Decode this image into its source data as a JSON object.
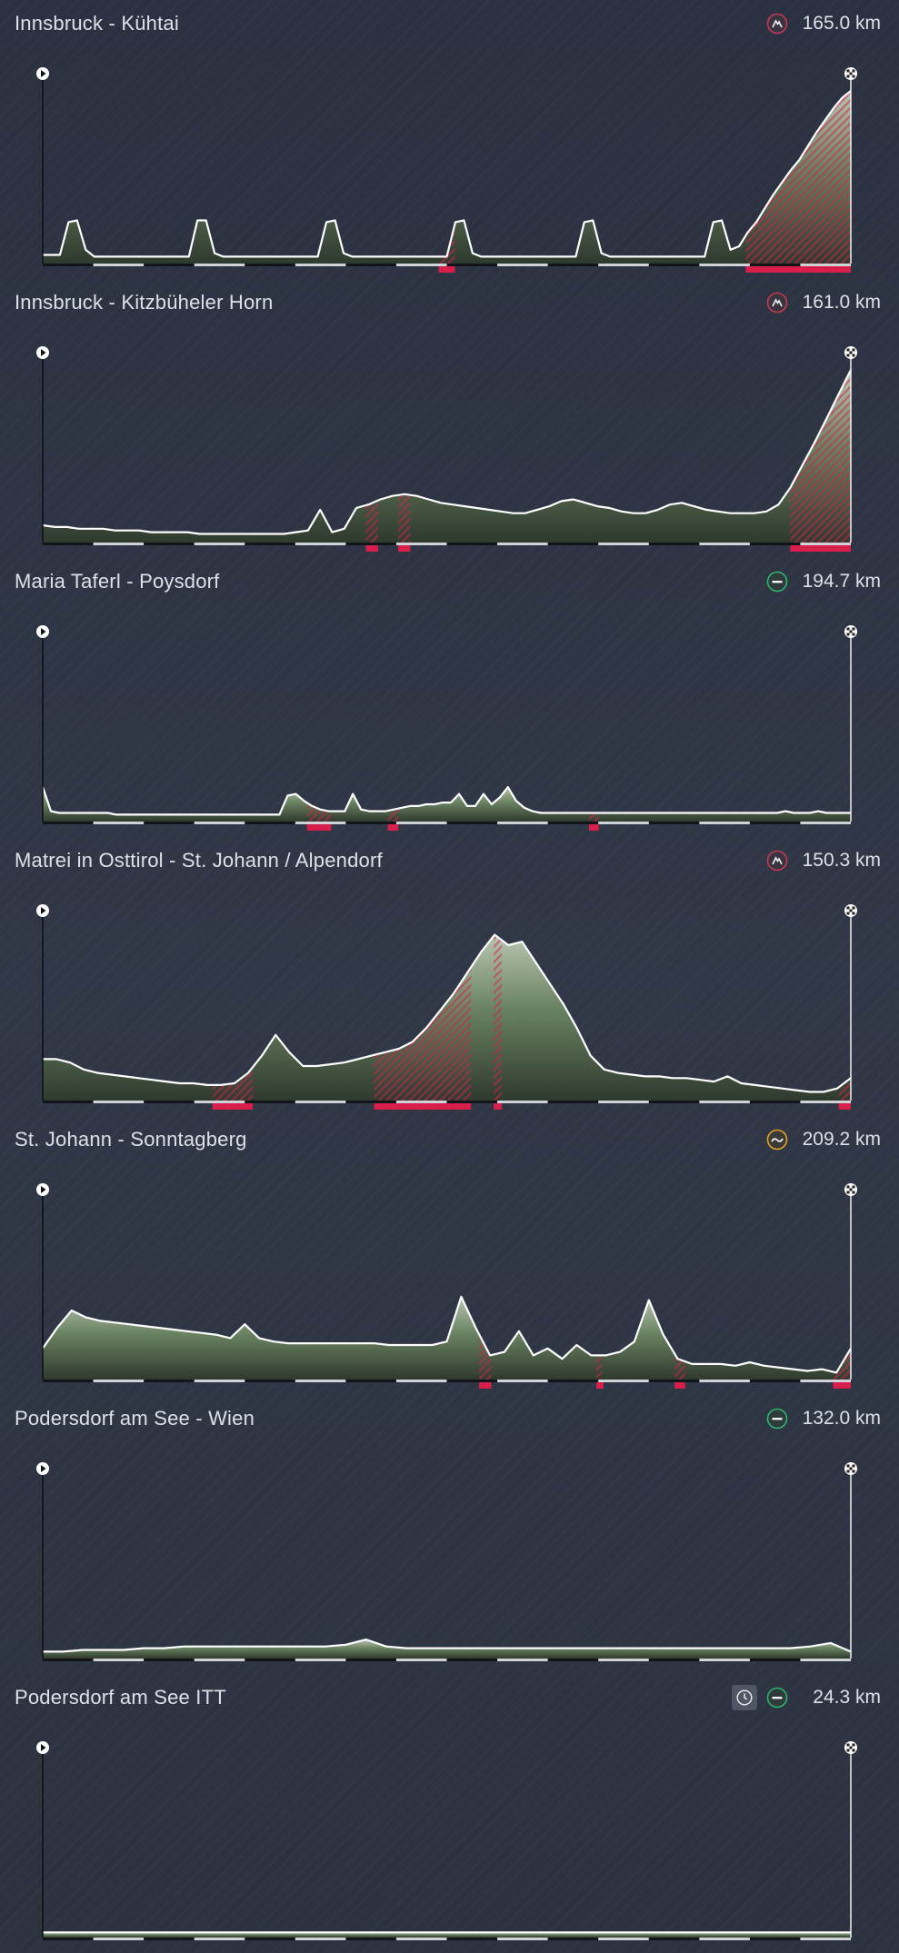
{
  "colors": {
    "background": "#2e3442",
    "mountain_fill_light": "#c7d5bd",
    "mountain_fill_dark": "#2f3a2c",
    "climb_marker": "#d81e4a",
    "mountain_icon": "#c43a55",
    "flat_icon": "#2bb56f",
    "hilly_icon": "#e3a22a",
    "text": "#dde1e7"
  },
  "stages": [
    {
      "title": "Innsbruck - Kühtai",
      "distance": "165.0 km",
      "stage_type_icon": "mountain-finish-icon",
      "time_trial": false,
      "profile": [
        0.05,
        0.05,
        0.05,
        0.24,
        0.25,
        0.08,
        0.04,
        0.04,
        0.04,
        0.04,
        0.04,
        0.04,
        0.04,
        0.04,
        0.04,
        0.04,
        0.04,
        0.04,
        0.25,
        0.25,
        0.06,
        0.04,
        0.04,
        0.04,
        0.04,
        0.04,
        0.04,
        0.04,
        0.04,
        0.04,
        0.04,
        0.04,
        0.04,
        0.24,
        0.25,
        0.06,
        0.04,
        0.04,
        0.04,
        0.04,
        0.04,
        0.04,
        0.04,
        0.04,
        0.04,
        0.04,
        0.04,
        0.04,
        0.24,
        0.25,
        0.06,
        0.04,
        0.04,
        0.04,
        0.04,
        0.04,
        0.04,
        0.04,
        0.04,
        0.04,
        0.04,
        0.04,
        0.04,
        0.24,
        0.25,
        0.06,
        0.04,
        0.04,
        0.04,
        0.04,
        0.04,
        0.04,
        0.04,
        0.04,
        0.04,
        0.04,
        0.04,
        0.04,
        0.24,
        0.25,
        0.08,
        0.1,
        0.18,
        0.24,
        0.32,
        0.4,
        0.47,
        0.54,
        0.6,
        0.68,
        0.76,
        0.83,
        0.9,
        0.96,
        1.0
      ],
      "climbs": [
        [
          0.49,
          0.51
        ],
        [
          0.87,
          1.0
        ]
      ]
    },
    {
      "title": "Innsbruck - Kitzbüheler Horn",
      "distance": "161.0 km",
      "stage_type_icon": "mountain-finish-icon",
      "time_trial": false,
      "profile": [
        0.1,
        0.09,
        0.09,
        0.08,
        0.08,
        0.08,
        0.07,
        0.07,
        0.07,
        0.06,
        0.06,
        0.06,
        0.06,
        0.05,
        0.05,
        0.05,
        0.05,
        0.05,
        0.05,
        0.05,
        0.05,
        0.06,
        0.07,
        0.19,
        0.06,
        0.08,
        0.2,
        0.22,
        0.25,
        0.27,
        0.28,
        0.27,
        0.25,
        0.23,
        0.22,
        0.21,
        0.2,
        0.19,
        0.18,
        0.17,
        0.17,
        0.19,
        0.21,
        0.24,
        0.25,
        0.23,
        0.21,
        0.2,
        0.18,
        0.17,
        0.17,
        0.19,
        0.22,
        0.23,
        0.21,
        0.19,
        0.18,
        0.17,
        0.17,
        0.17,
        0.18,
        0.22,
        0.32,
        0.45,
        0.58,
        0.72,
        0.86,
        1.0
      ],
      "climbs": [
        [
          0.4,
          0.415
        ],
        [
          0.44,
          0.455
        ],
        [
          0.925,
          1.0
        ]
      ]
    },
    {
      "title": "Maria Taferl - Poysdorf",
      "distance": "194.7 km",
      "stage_type_icon": "flat-stage-icon",
      "time_trial": false,
      "profile": [
        0.2,
        0.06,
        0.05,
        0.05,
        0.05,
        0.05,
        0.05,
        0.05,
        0.05,
        0.04,
        0.04,
        0.04,
        0.04,
        0.04,
        0.04,
        0.04,
        0.04,
        0.04,
        0.04,
        0.04,
        0.04,
        0.04,
        0.04,
        0.04,
        0.04,
        0.04,
        0.04,
        0.04,
        0.04,
        0.04,
        0.15,
        0.16,
        0.12,
        0.09,
        0.07,
        0.06,
        0.06,
        0.06,
        0.16,
        0.07,
        0.06,
        0.06,
        0.06,
        0.07,
        0.08,
        0.09,
        0.09,
        0.1,
        0.1,
        0.11,
        0.11,
        0.16,
        0.09,
        0.09,
        0.16,
        0.1,
        0.14,
        0.2,
        0.12,
        0.08,
        0.06,
        0.05,
        0.05,
        0.05,
        0.05,
        0.05,
        0.05,
        0.05,
        0.05,
        0.05,
        0.05,
        0.05,
        0.05,
        0.05,
        0.05,
        0.05,
        0.05,
        0.05,
        0.05,
        0.05,
        0.05,
        0.05,
        0.05,
        0.05,
        0.05,
        0.05,
        0.05,
        0.05,
        0.05,
        0.05,
        0.05,
        0.06,
        0.05,
        0.05,
        0.05,
        0.06,
        0.05,
        0.05,
        0.05,
        0.05
      ],
      "climbs": [
        [
          0.327,
          0.357
        ],
        [
          0.427,
          0.44
        ],
        [
          0.676,
          0.688
        ]
      ]
    },
    {
      "title": "Matrei in Osttirol - St. Johann / Alpendorf",
      "distance": "150.3 km",
      "stage_type_icon": "mountain-finish-icon",
      "time_trial": false,
      "profile": [
        0.24,
        0.24,
        0.22,
        0.18,
        0.16,
        0.15,
        0.14,
        0.13,
        0.12,
        0.11,
        0.1,
        0.1,
        0.09,
        0.09,
        0.1,
        0.16,
        0.26,
        0.38,
        0.28,
        0.2,
        0.2,
        0.21,
        0.22,
        0.24,
        0.26,
        0.28,
        0.3,
        0.34,
        0.42,
        0.52,
        0.62,
        0.74,
        0.86,
        0.96,
        0.9,
        0.92,
        0.8,
        0.68,
        0.56,
        0.42,
        0.26,
        0.18,
        0.16,
        0.15,
        0.14,
        0.14,
        0.13,
        0.13,
        0.12,
        0.11,
        0.14,
        0.1,
        0.09,
        0.08,
        0.07,
        0.06,
        0.05,
        0.05,
        0.07,
        0.13
      ],
      "climbs": [
        [
          0.21,
          0.26
        ],
        [
          0.41,
          0.53
        ],
        [
          0.558,
          0.568
        ],
        [
          0.985,
          1.0
        ]
      ]
    },
    {
      "title": "St. Johann - Sonntagberg",
      "distance": "209.2 km",
      "stage_type_icon": "hilly-stage-icon",
      "time_trial": false,
      "profile": [
        0.18,
        0.3,
        0.4,
        0.36,
        0.34,
        0.33,
        0.32,
        0.31,
        0.3,
        0.29,
        0.28,
        0.27,
        0.26,
        0.24,
        0.32,
        0.24,
        0.22,
        0.21,
        0.21,
        0.21,
        0.21,
        0.21,
        0.21,
        0.21,
        0.2,
        0.2,
        0.2,
        0.2,
        0.22,
        0.48,
        0.3,
        0.14,
        0.16,
        0.28,
        0.14,
        0.18,
        0.12,
        0.2,
        0.14,
        0.14,
        0.16,
        0.22,
        0.46,
        0.26,
        0.12,
        0.09,
        0.09,
        0.09,
        0.08,
        0.1,
        0.08,
        0.07,
        0.06,
        0.05,
        0.06,
        0.04,
        0.18
      ],
      "climbs": [
        [
          0.54,
          0.555
        ],
        [
          0.685,
          0.692
        ],
        [
          0.782,
          0.795
        ],
        [
          0.978,
          1.0
        ]
      ]
    },
    {
      "title": "Podersdorf am See - Wien",
      "distance": "132.0 km",
      "stage_type_icon": "flat-stage-icon",
      "time_trial": false,
      "profile": [
        0.04,
        0.04,
        0.05,
        0.05,
        0.05,
        0.06,
        0.06,
        0.07,
        0.07,
        0.07,
        0.07,
        0.07,
        0.07,
        0.07,
        0.07,
        0.08,
        0.11,
        0.07,
        0.06,
        0.06,
        0.06,
        0.06,
        0.06,
        0.06,
        0.06,
        0.06,
        0.06,
        0.06,
        0.06,
        0.06,
        0.06,
        0.06,
        0.06,
        0.06,
        0.06,
        0.06,
        0.06,
        0.06,
        0.07,
        0.09,
        0.04
      ],
      "climbs": []
    },
    {
      "title": "Podersdorf am See ITT",
      "distance": "24.3 km",
      "stage_type_icon": "flat-stage-icon",
      "time_trial": true,
      "profile": [
        0.03,
        0.03,
        0.03,
        0.03,
        0.03,
        0.03,
        0.03,
        0.03,
        0.03,
        0.03,
        0.03,
        0.03,
        0.03,
        0.03,
        0.03,
        0.03,
        0.03,
        0.03,
        0.03,
        0.03
      ],
      "climbs": []
    }
  ]
}
